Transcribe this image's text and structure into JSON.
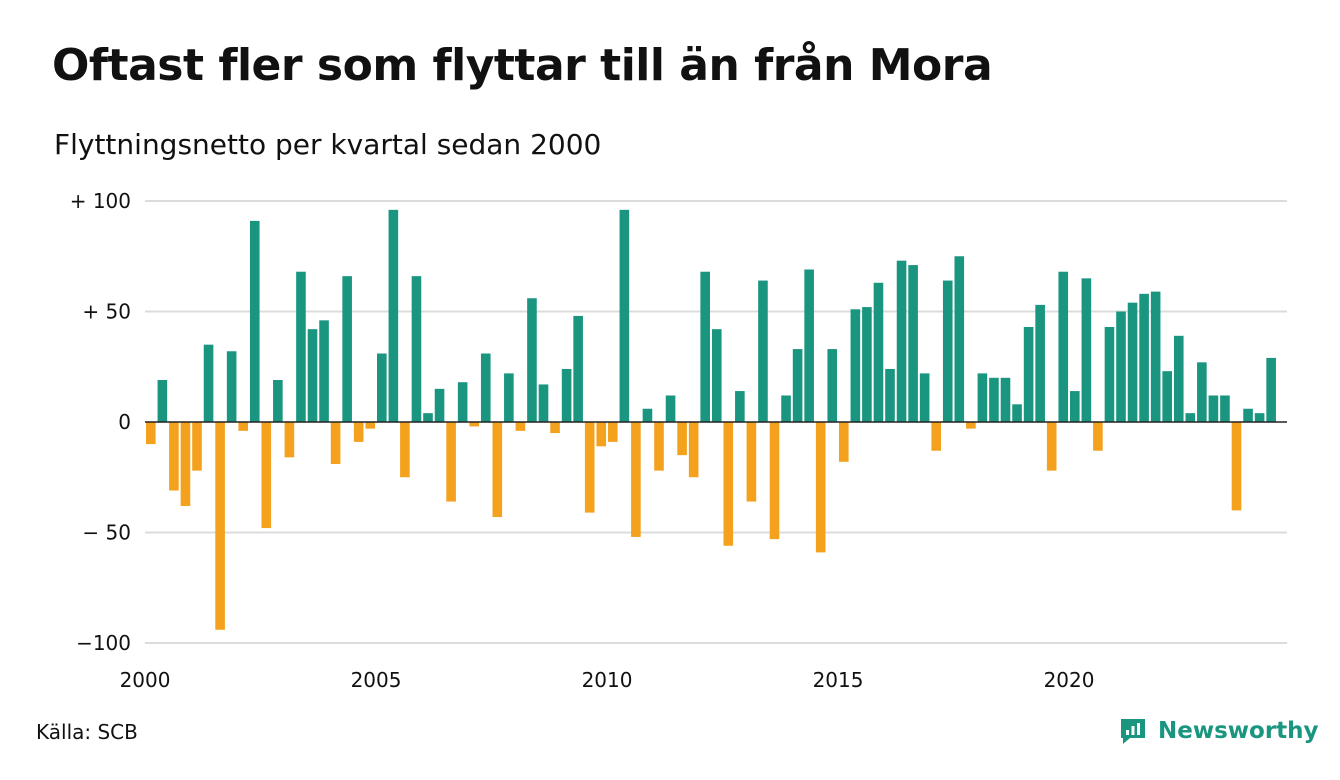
{
  "title": "Oftast fler som flyttar till än från Mora",
  "subtitle": "Flyttningsnetto per kvartal sedan 2000",
  "source": "Källa: SCB",
  "brand": {
    "name": "Newsworthy",
    "icon": "newsworthy-logo-icon"
  },
  "colors": {
    "positive": "#1a9580",
    "negative": "#f4a11e",
    "grid": "#dcdcdc",
    "zero_line": "#222222"
  },
  "chart_data": {
    "type": "bar",
    "title": "Oftast fler som flyttar till än från Mora",
    "subtitle": "Flyttningsnetto per kvartal sedan 2000",
    "ylim": [
      -100,
      100
    ],
    "y_ticks": [
      {
        "value": 100,
        "label": "+ 100"
      },
      {
        "value": 50,
        "label": "+  50"
      },
      {
        "value": 0,
        "label": "0"
      },
      {
        "value": -50,
        "label": "− 50"
      },
      {
        "value": -100,
        "label": "−100"
      }
    ],
    "x_ticks": [
      "2000",
      "2005",
      "2010",
      "2015",
      "2020"
    ],
    "grid": true,
    "start_period": "2000 Q1",
    "frequency": "quarterly",
    "values": [
      -10,
      19,
      -31,
      -38,
      -22,
      35,
      -94,
      32,
      -4,
      91,
      -48,
      19,
      -16,
      68,
      42,
      46,
      -19,
      66,
      -9,
      -3,
      31,
      96,
      -25,
      66,
      4,
      15,
      -36,
      18,
      -2,
      31,
      -43,
      22,
      -4,
      56,
      17,
      -5,
      24,
      48,
      -41,
      -11,
      -9,
      96,
      -52,
      6,
      -22,
      12,
      -15,
      -25,
      68,
      42,
      -56,
      14,
      -36,
      64,
      -53,
      12,
      33,
      69,
      -59,
      33,
      -18,
      51,
      52,
      63,
      24,
      73,
      71,
      22,
      -13,
      64,
      75,
      -3,
      22,
      20,
      20,
      8,
      43,
      53,
      -22,
      68,
      14,
      65,
      -13,
      43,
      50,
      54,
      58,
      59,
      23,
      39,
      4,
      27,
      12,
      12,
      -40,
      6,
      4,
      29
    ]
  }
}
